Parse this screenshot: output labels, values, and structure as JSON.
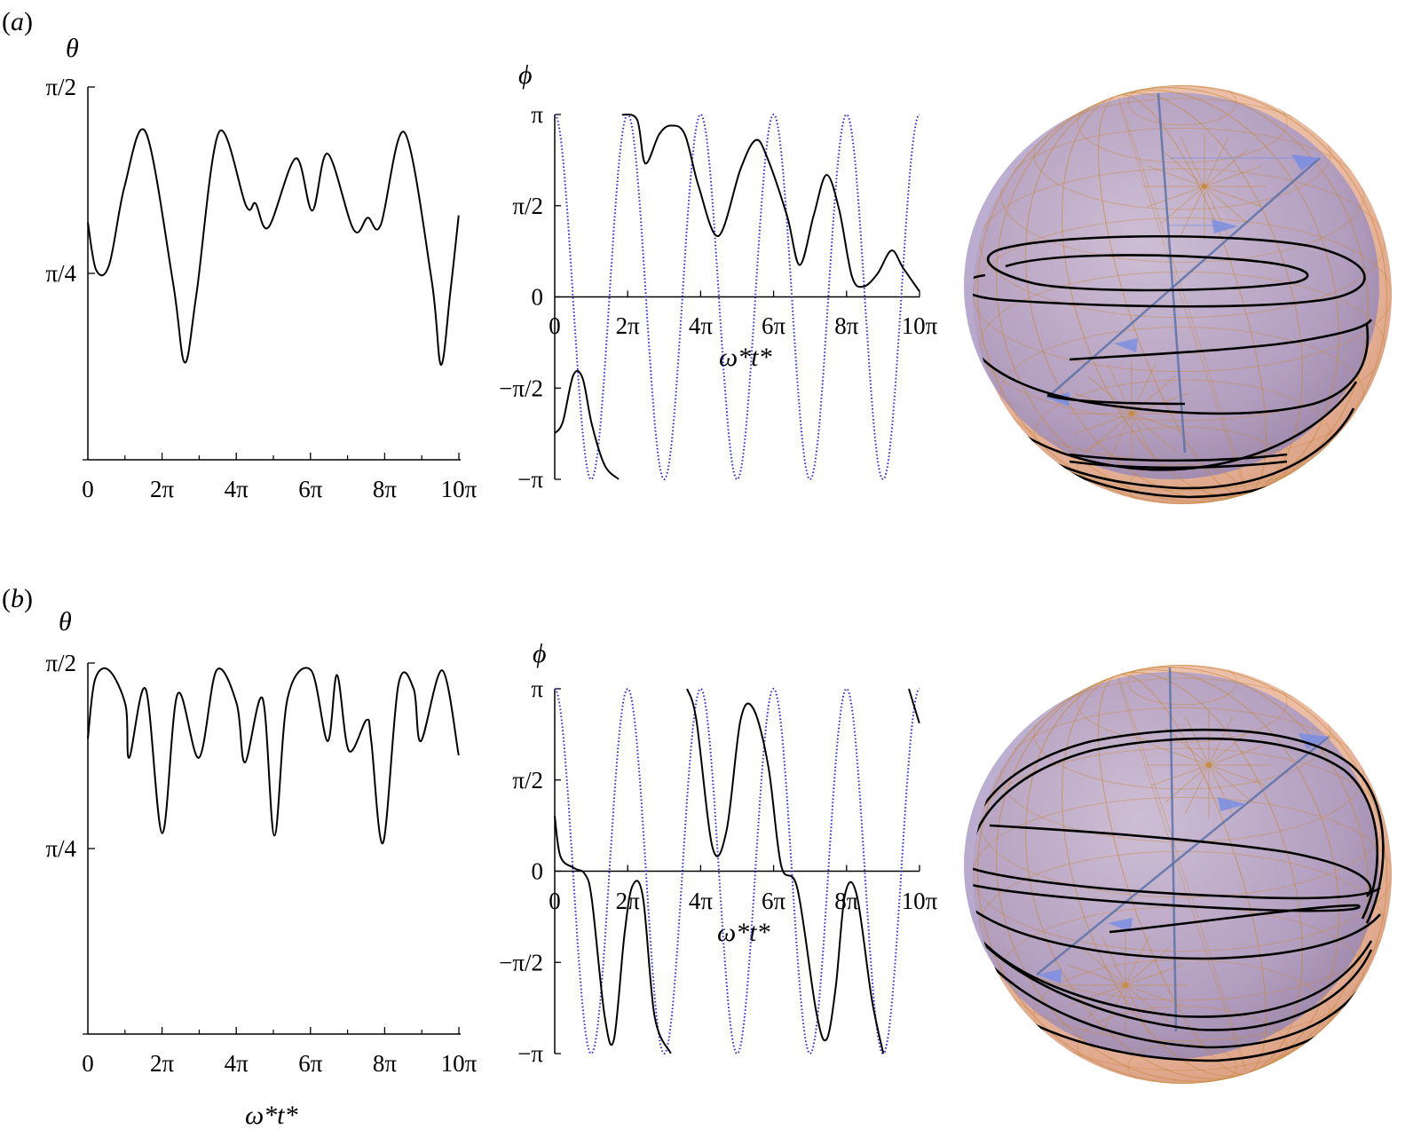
{
  "figure": {
    "panels": [
      {
        "label": "(a)",
        "label_italic": "a"
      },
      {
        "label": "(b)",
        "label_italic": "b"
      }
    ],
    "theta_label": "θ",
    "phi_label": "ϕ",
    "xlabel": "ω*t*",
    "x_ticks": [
      "0",
      "2π",
      "4π",
      "6π",
      "8π",
      "10π"
    ],
    "theta_ticks": [
      "π/4",
      "π/2"
    ],
    "phi_ticks": [
      "−π",
      "−π/2",
      "0",
      "π/2",
      "π"
    ],
    "colors": {
      "curve": "#000000",
      "dotted": "#2a2acc",
      "sphere_outer": "#e8b59a",
      "sphere_inner": "#a99ac4",
      "sphere_grid": "#c88a3c",
      "sphere_axis": "#5d72a8",
      "sphere_arrow": "#7b8ee0"
    },
    "sphere_icon": "bloch-sphere-trajectory"
  },
  "chart_data": [
    {
      "type": "line",
      "panel": "a",
      "name_key": "theta",
      "xlabel": "",
      "ylabel": "θ",
      "xlim": [
        0,
        31.4159
      ],
      "ylim": [
        0,
        1.5708
      ],
      "x_tick_values": [
        0,
        6.2832,
        12.5664,
        18.8496,
        25.1327,
        31.4159
      ],
      "y_tick_values": [
        0.7854,
        1.5708
      ],
      "keypoints": [
        [
          0,
          1.0
        ],
        [
          0.7,
          0.8
        ],
        [
          1.8,
          0.82
        ],
        [
          3.1,
          1.15
        ],
        [
          4.9,
          1.38
        ],
        [
          7.2,
          0.75
        ],
        [
          8.2,
          0.41
        ],
        [
          9.2,
          0.7
        ],
        [
          11.1,
          1.38
        ],
        [
          13.4,
          1.07
        ],
        [
          14.2,
          1.08
        ],
        [
          15.3,
          0.98
        ],
        [
          17.6,
          1.27
        ],
        [
          19.0,
          1.05
        ],
        [
          20.3,
          1.29
        ],
        [
          22.5,
          0.97
        ],
        [
          23.7,
          1.02
        ],
        [
          24.8,
          0.99
        ],
        [
          26.8,
          1.38
        ],
        [
          29.1,
          0.76
        ],
        [
          29.9,
          0.4
        ],
        [
          30.7,
          0.71
        ],
        [
          31.4,
          1.03
        ]
      ]
    },
    {
      "type": "line",
      "panel": "a",
      "name_key": "phi",
      "xlabel": "ω*t*",
      "ylabel": "ϕ",
      "xlim": [
        0,
        31.4159
      ],
      "ylim": [
        -3.1416,
        3.1416
      ],
      "x_tick_values": [
        0,
        6.2832,
        12.5664,
        18.8496,
        25.1327,
        31.4159
      ],
      "y_tick_values": [
        -3.1416,
        -1.5708,
        0,
        1.5708,
        3.1416
      ],
      "segments": [
        [
          [
            0,
            -2.35
          ],
          [
            0.7,
            -2.15
          ],
          [
            1.6,
            -1.35
          ],
          [
            2.4,
            -1.4
          ],
          [
            3.2,
            -2.2
          ],
          [
            4.3,
            -2.9
          ],
          [
            5.5,
            -3.14
          ]
        ],
        [
          [
            5.8,
            3.14
          ],
          [
            7.1,
            3.05
          ],
          [
            7.8,
            2.3
          ],
          [
            9.0,
            2.8
          ],
          [
            10.0,
            2.95
          ],
          [
            11.2,
            2.8
          ],
          [
            12.4,
            1.9
          ],
          [
            14.1,
            1.05
          ],
          [
            16.0,
            2.2
          ],
          [
            17.3,
            2.7
          ],
          [
            18.3,
            2.4
          ],
          [
            20.0,
            1.4
          ],
          [
            21.1,
            0.55
          ],
          [
            22.3,
            1.4
          ],
          [
            23.4,
            2.1
          ],
          [
            24.5,
            1.5
          ],
          [
            25.6,
            0.35
          ],
          [
            26.6,
            0.18
          ],
          [
            27.8,
            0.4
          ],
          [
            29.0,
            0.8
          ],
          [
            30.0,
            0.5
          ],
          [
            31.4,
            0.1
          ]
        ]
      ],
      "cosine_period": 6.2832,
      "cosine_amplitude": 3.1416
    },
    {
      "type": "line",
      "panel": "b",
      "name_key": "theta",
      "xlabel": "ω*t*",
      "ylabel": "θ",
      "xlim": [
        0,
        31.4159
      ],
      "ylim": [
        0,
        1.5708
      ],
      "x_tick_values": [
        0,
        6.2832,
        12.5664,
        18.8496,
        25.1327,
        31.4159
      ],
      "y_tick_values": [
        0.7854,
        1.5708
      ],
      "keypoints": [
        [
          0,
          1.25
        ],
        [
          0.6,
          1.5
        ],
        [
          1.8,
          1.54
        ],
        [
          3.2,
          1.39
        ],
        [
          3.5,
          1.17
        ],
        [
          4.9,
          1.46
        ],
        [
          6.3,
          0.85
        ],
        [
          7.6,
          1.44
        ],
        [
          9.4,
          1.17
        ],
        [
          10.9,
          1.54
        ],
        [
          12.6,
          1.4
        ],
        [
          13.3,
          1.15
        ],
        [
          14.8,
          1.42
        ],
        [
          15.8,
          0.84
        ],
        [
          16.9,
          1.42
        ],
        [
          18.9,
          1.54
        ],
        [
          20.3,
          1.24
        ],
        [
          21.1,
          1.52
        ],
        [
          22.1,
          1.2
        ],
        [
          23.6,
          1.33
        ],
        [
          24.0,
          1.24
        ],
        [
          25.0,
          0.81
        ],
        [
          26.3,
          1.48
        ],
        [
          27.6,
          1.46
        ],
        [
          28.2,
          1.24
        ],
        [
          30.0,
          1.54
        ],
        [
          31.4,
          1.18
        ]
      ]
    },
    {
      "type": "line",
      "panel": "b",
      "name_key": "phi",
      "xlabel": "ω*t*",
      "ylabel": "ϕ",
      "xlim": [
        0,
        31.4159
      ],
      "ylim": [
        -3.1416,
        3.1416
      ],
      "x_tick_values": [
        0,
        6.2832,
        12.5664,
        18.8496,
        25.1327,
        31.4159
      ],
      "y_tick_values": [
        -3.1416,
        -1.5708,
        0,
        1.5708,
        3.1416
      ],
      "segments": [
        [
          [
            0,
            0.95
          ],
          [
            0.5,
            0.25
          ],
          [
            1.7,
            0.05
          ],
          [
            2.6,
            -0.05
          ],
          [
            3.2,
            -0.5
          ],
          [
            4.3,
            -2.5
          ],
          [
            5.1,
            -2.9
          ],
          [
            6.0,
            -1.1
          ],
          [
            6.7,
            -0.25
          ],
          [
            7.6,
            -0.45
          ],
          [
            8.6,
            -2.5
          ],
          [
            10.0,
            -3.14
          ]
        ],
        [
          [
            11.4,
            3.14
          ],
          [
            12.2,
            2.6
          ],
          [
            13.6,
            0.4
          ],
          [
            14.8,
            0.7
          ],
          [
            16.0,
            2.6
          ],
          [
            17.1,
            2.8
          ],
          [
            18.4,
            1.8
          ],
          [
            19.5,
            0.1
          ],
          [
            20.9,
            -0.3
          ],
          [
            22.5,
            -2.4
          ],
          [
            23.4,
            -2.9
          ],
          [
            24.2,
            -2.0
          ],
          [
            25.0,
            -0.4
          ],
          [
            26.0,
            -0.4
          ],
          [
            27.3,
            -2.2
          ],
          [
            28.3,
            -3.14
          ]
        ],
        [
          [
            30.5,
            3.14
          ],
          [
            31.4,
            2.55
          ]
        ]
      ],
      "cosine_period": 6.2832,
      "cosine_amplitude": 3.1416
    }
  ]
}
